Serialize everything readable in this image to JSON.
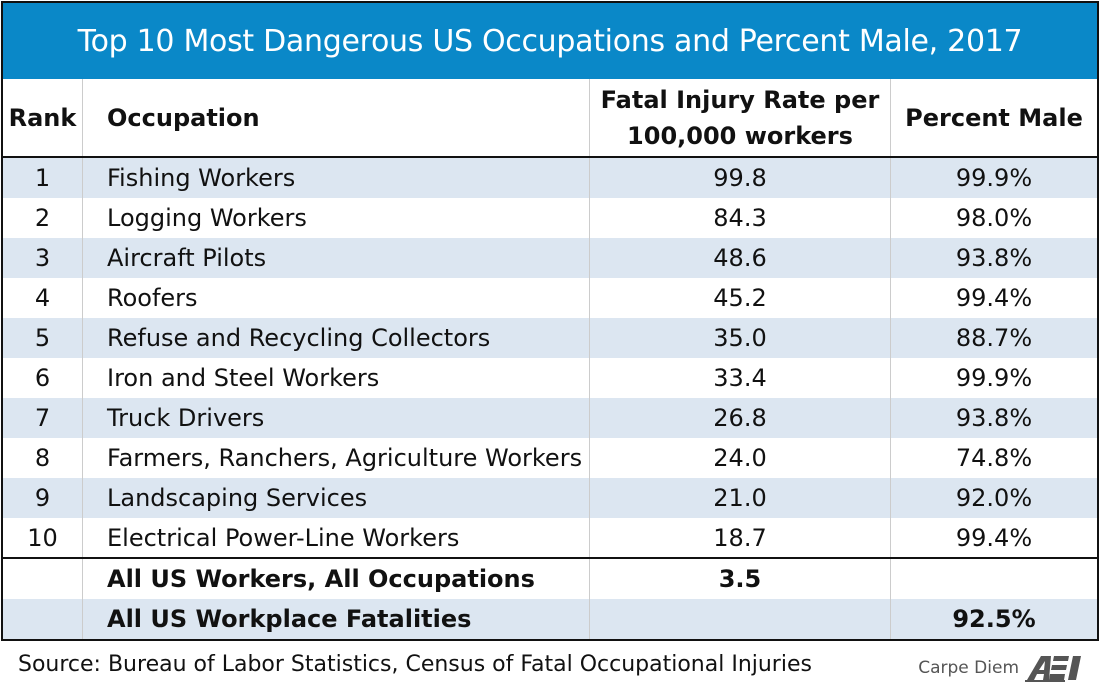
{
  "title": "Top 10 Most Dangerous US Occupations and Percent Male, 2017",
  "headers": {
    "rank": "Rank",
    "occupation": "Occupation",
    "rate_line1": "Fatal Injury Rate per",
    "rate_line2": "100,000 workers",
    "male": "Percent Male"
  },
  "rows": [
    {
      "rank": "1",
      "occupation": "Fishing Workers",
      "rate": "99.8",
      "male": "99.9%"
    },
    {
      "rank": "2",
      "occupation": "Logging Workers",
      "rate": "84.3",
      "male": "98.0%"
    },
    {
      "rank": "3",
      "occupation": "Aircraft Pilots",
      "rate": "48.6",
      "male": "93.8%"
    },
    {
      "rank": "4",
      "occupation": "Roofers",
      "rate": "45.2",
      "male": "99.4%"
    },
    {
      "rank": "5",
      "occupation": "Refuse and Recycling Collectors",
      "rate": "35.0",
      "male": "88.7%"
    },
    {
      "rank": "6",
      "occupation": "Iron and Steel Workers",
      "rate": "33.4",
      "male": "99.9%"
    },
    {
      "rank": "7",
      "occupation": "Truck Drivers",
      "rate": "26.8",
      "male": "93.8%"
    },
    {
      "rank": "8",
      "occupation": "Farmers, Ranchers, Agriculture Workers",
      "rate": "24.0",
      "male": "74.8%"
    },
    {
      "rank": "9",
      "occupation": "Landscaping Services",
      "rate": "21.0",
      "male": "92.0%"
    },
    {
      "rank": "10",
      "occupation": "Electrical Power-Line Workers",
      "rate": "18.7",
      "male": "99.4%"
    }
  ],
  "totals": [
    {
      "rank": "",
      "occupation": "All US Workers, All Occupations",
      "rate": "3.5",
      "male": ""
    },
    {
      "rank": "",
      "occupation": "All US Workplace Fatalities",
      "rate": "",
      "male": "92.5%"
    }
  ],
  "footer": {
    "source": "Source: Bureau of Labor Statistics, Census of Fatal Occupational Injuries",
    "brand": "Carpe Diem",
    "logo_text": "AEI"
  },
  "colors": {
    "title_bg": "#0a88c8",
    "stripe": "#dce6f1"
  }
}
